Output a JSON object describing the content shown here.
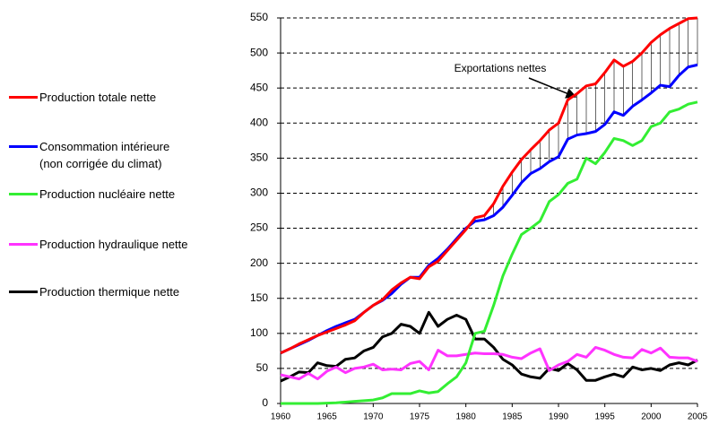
{
  "chart_data": {
    "type": "line",
    "x": [
      1960,
      1961,
      1962,
      1963,
      1964,
      1965,
      1966,
      1967,
      1968,
      1969,
      1970,
      1971,
      1972,
      1973,
      1974,
      1975,
      1976,
      1977,
      1978,
      1979,
      1980,
      1981,
      1982,
      1983,
      1984,
      1985,
      1986,
      1987,
      1988,
      1989,
      1990,
      1991,
      1992,
      1993,
      1994,
      1995,
      1996,
      1997,
      1998,
      1999,
      2000,
      2001,
      2002,
      2003,
      2004,
      2005
    ],
    "series": [
      {
        "name": "Production totale nette",
        "color": "#ff0000",
        "values": [
          72,
          78,
          85,
          91,
          97,
          102,
          107,
          112,
          118,
          130,
          140,
          148,
          162,
          172,
          180,
          178,
          195,
          203,
          218,
          233,
          248,
          265,
          268,
          285,
          310,
          330,
          348,
          362,
          375,
          390,
          400,
          433,
          442,
          453,
          456,
          472,
          490,
          481,
          488,
          500,
          515,
          526,
          535,
          542,
          549,
          550
        ]
      },
      {
        "name": "Consommation intérieure\n(non corrigée du climat)",
        "color": "#0000ff",
        "values": [
          72,
          78,
          84,
          90,
          97,
          104,
          110,
          115,
          120,
          130,
          140,
          147,
          157,
          170,
          180,
          180,
          197,
          207,
          220,
          235,
          250,
          260,
          262,
          268,
          280,
          297,
          315,
          328,
          335,
          345,
          352,
          377,
          383,
          385,
          388,
          398,
          416,
          411,
          424,
          433,
          443,
          454,
          452,
          468,
          480,
          483
        ]
      },
      {
        "name": "Production nucléaire nette",
        "color": "#33ee33",
        "values": [
          0,
          0,
          0,
          0,
          0,
          0.5,
          1,
          2,
          3,
          4,
          5,
          8,
          14,
          14,
          14,
          18,
          15,
          17,
          28,
          38,
          58,
          100,
          103,
          140,
          182,
          213,
          241,
          250,
          260,
          288,
          298,
          314,
          320,
          350,
          342,
          358,
          378,
          375,
          368,
          375,
          395,
          400,
          416,
          420,
          427,
          430
        ]
      },
      {
        "name": "Production hydraulique nette",
        "color": "#ff33ff",
        "values": [
          41,
          38,
          35,
          43,
          35,
          46,
          52,
          44,
          50,
          52,
          56,
          48,
          49,
          48,
          57,
          60,
          48,
          76,
          68,
          68,
          70,
          72,
          71,
          71,
          70,
          66,
          64,
          72,
          78,
          47,
          55,
          60,
          70,
          66,
          80,
          76,
          70,
          66,
          65,
          77,
          72,
          79,
          66,
          65,
          65,
          60
        ]
      },
      {
        "name": "Production thermique nette",
        "color": "#000000",
        "values": [
          32,
          38,
          45,
          44,
          58,
          54,
          53,
          63,
          65,
          75,
          80,
          95,
          100,
          113,
          110,
          100,
          130,
          110,
          120,
          126,
          120,
          92,
          92,
          80,
          63,
          55,
          42,
          38,
          36,
          50,
          47,
          57,
          48,
          33,
          33,
          38,
          42,
          38,
          52,
          48,
          50,
          47,
          55,
          58,
          55,
          62
        ]
      }
    ],
    "annotation": "Exportations nettes",
    "xlim": [
      1960,
      2005
    ],
    "xticks": [
      1960,
      1965,
      1970,
      1975,
      1980,
      1985,
      1990,
      1995,
      2000,
      2005
    ],
    "ylim": [
      0,
      550
    ],
    "yticks": [
      0,
      50,
      100,
      150,
      200,
      250,
      300,
      350,
      400,
      450,
      500,
      550
    ],
    "grid": true
  }
}
